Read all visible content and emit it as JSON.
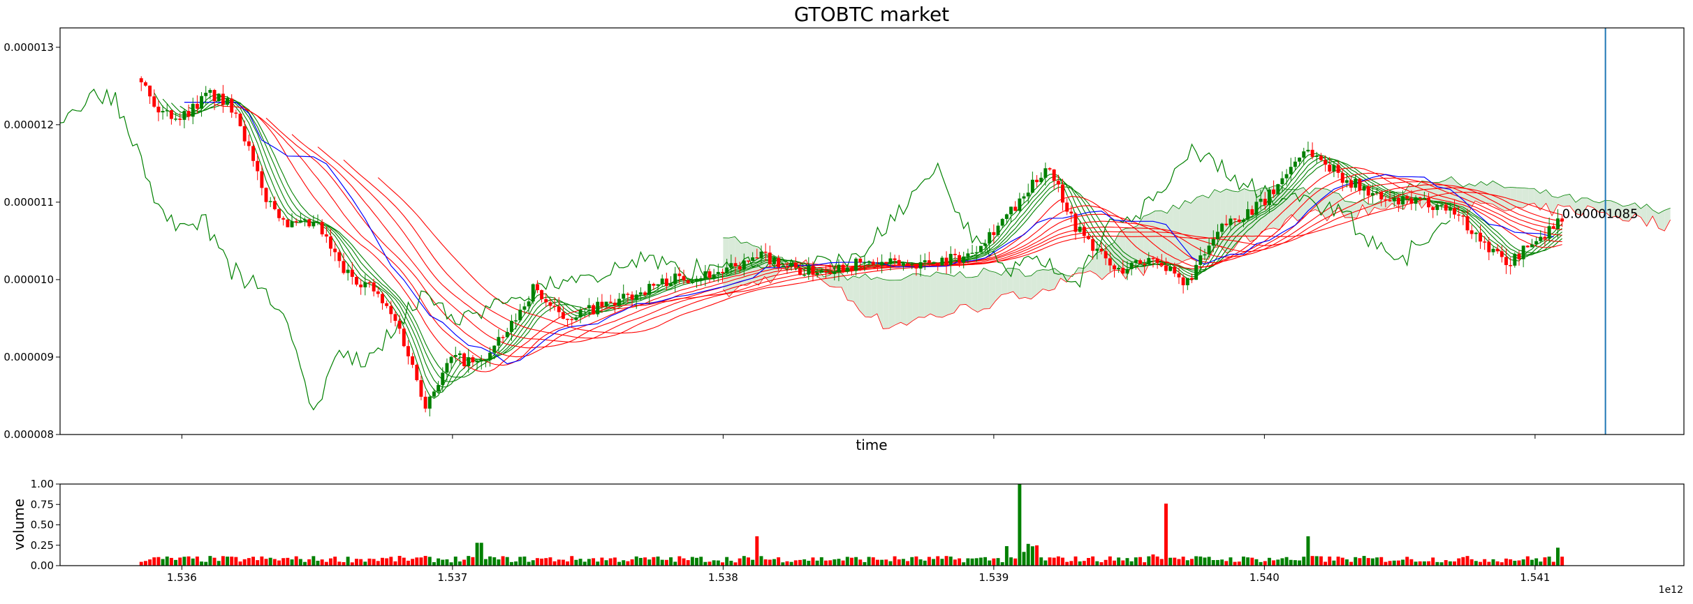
{
  "chart_data": [
    {
      "type": "candlestick",
      "title": "GTOBTC market",
      "xlabel": "time",
      "ylabel": "",
      "x_offset_label": "1e12",
      "xlim": [
        1.53555,
        1.54155
      ],
      "ylim": [
        8e-06,
        1.325e-05
      ],
      "x_ticks": [
        1.536,
        1.537,
        1.538,
        1.539,
        1.54,
        1.541
      ],
      "x_tick_labels": [
        "1.536",
        "1.537",
        "1.538",
        "1.539",
        "1.540",
        "1.541"
      ],
      "y_ticks": [
        8e-06,
        9e-06,
        1e-05,
        1.1e-05,
        1.2e-05,
        1.3e-05
      ],
      "y_tick_labels": [
        "0.000008",
        "0.000009",
        "0.000010",
        "0.000011",
        "0.000012",
        "0.000013"
      ],
      "annotation": {
        "text": "0.00001085",
        "x": 1.5411,
        "y": 1.085e-05
      },
      "vline": {
        "x": 1.54126,
        "color": "#1f77b4"
      },
      "colors": {
        "up": "#008000",
        "down": "#ff0000",
        "ma_fast": "#008000",
        "ma_slow": "#ff0000",
        "blue_line": "#0000ff",
        "cloud_up": "#d9ead9",
        "cloud_down": "#f9d9d4"
      },
      "ohlc_keypoints": {
        "x": [
          1.53585,
          1.5359,
          1.536,
          1.5361,
          1.5362,
          1.5363,
          1.5364,
          1.5365,
          1.5366,
          1.5367,
          1.5368,
          1.5369,
          1.537,
          1.5371,
          1.5372,
          1.5373,
          1.5374,
          1.5376,
          1.5378,
          1.538,
          1.53815,
          1.5383,
          1.5385,
          1.5387,
          1.5389,
          1.5391,
          1.5392,
          1.5393,
          1.53945,
          1.5396,
          1.5397,
          1.53985,
          1.54,
          1.54015,
          1.5403,
          1.54045,
          1.5406,
          1.5407,
          1.5408,
          1.5409,
          1.541,
          1.5411
        ],
        "close": [
          1.26e-05,
          1.22e-05,
          1.21e-05,
          1.24e-05,
          1.22e-05,
          1.11e-05,
          1.07e-05,
          1.07e-05,
          1.01e-05,
          9.9e-06,
          9.4e-06,
          8.4e-06,
          9e-06,
          8.9e-06,
          9.3e-06,
          9.9e-06,
          9.5e-06,
          9.7e-06,
          1e-05,
          1.01e-05,
          1.03e-05,
          1.01e-05,
          1.02e-05,
          1.02e-05,
          1.03e-05,
          1.1e-05,
          1.15e-05,
          1.07e-05,
          1.01e-05,
          1.03e-05,
          9.9e-06,
          1.07e-05,
          1.1e-05,
          1.17e-05,
          1.13e-05,
          1.1e-05,
          1.1e-05,
          1.09e-05,
          1.05e-05,
          1.02e-05,
          1.05e-05,
          1.08e-05
        ]
      },
      "ichimoku_band": {
        "x": [
          1.538,
          1.5383,
          1.5386,
          1.539,
          1.5393,
          1.5395,
          1.5398,
          1.5401,
          1.5404,
          1.5406,
          1.5409,
          1.5412,
          1.5415
        ],
        "span_a": [
          1.06e-05,
          1.01e-05,
          1e-05,
          1.01e-05,
          1.01e-05,
          1.07e-05,
          1.11e-05,
          1.12e-05,
          1.1e-05,
          1.13e-05,
          1.12e-05,
          1.1e-05,
          1.09e-05
        ],
        "span_b": [
          9.8e-06,
          1.02e-05,
          9.4e-06,
          9.7e-06,
          1e-05,
          1.01e-05,
          1.03e-05,
          1.08e-05,
          1.09e-05,
          1.1e-05,
          1.09e-05,
          1.09e-05,
          1.07e-05
        ]
      }
    },
    {
      "type": "bar",
      "title": "",
      "xlabel": "",
      "ylabel": "volume",
      "xlim": [
        1.53555,
        1.54155
      ],
      "ylim": [
        0.0,
        1.0
      ],
      "x_ticks": [
        1.536,
        1.537,
        1.538,
        1.539,
        1.54,
        1.541
      ],
      "x_tick_labels": [
        "1.536",
        "1.537",
        "1.538",
        "1.539",
        "1.540",
        "1.541"
      ],
      "y_ticks": [
        0.0,
        0.25,
        0.5,
        0.75,
        1.0
      ],
      "y_tick_labels": [
        "0.00",
        "0.25",
        "0.50",
        "0.75",
        "1.00"
      ],
      "volume_spikes": [
        {
          "x": 1.5371,
          "value": 0.28
        },
        {
          "x": 1.53813,
          "value": 0.36
        },
        {
          "x": 1.5391,
          "value": 1.0
        },
        {
          "x": 1.53963,
          "value": 0.76
        },
        {
          "x": 1.54016,
          "value": 0.36
        },
        {
          "x": 1.54108,
          "value": 0.22
        }
      ]
    }
  ]
}
